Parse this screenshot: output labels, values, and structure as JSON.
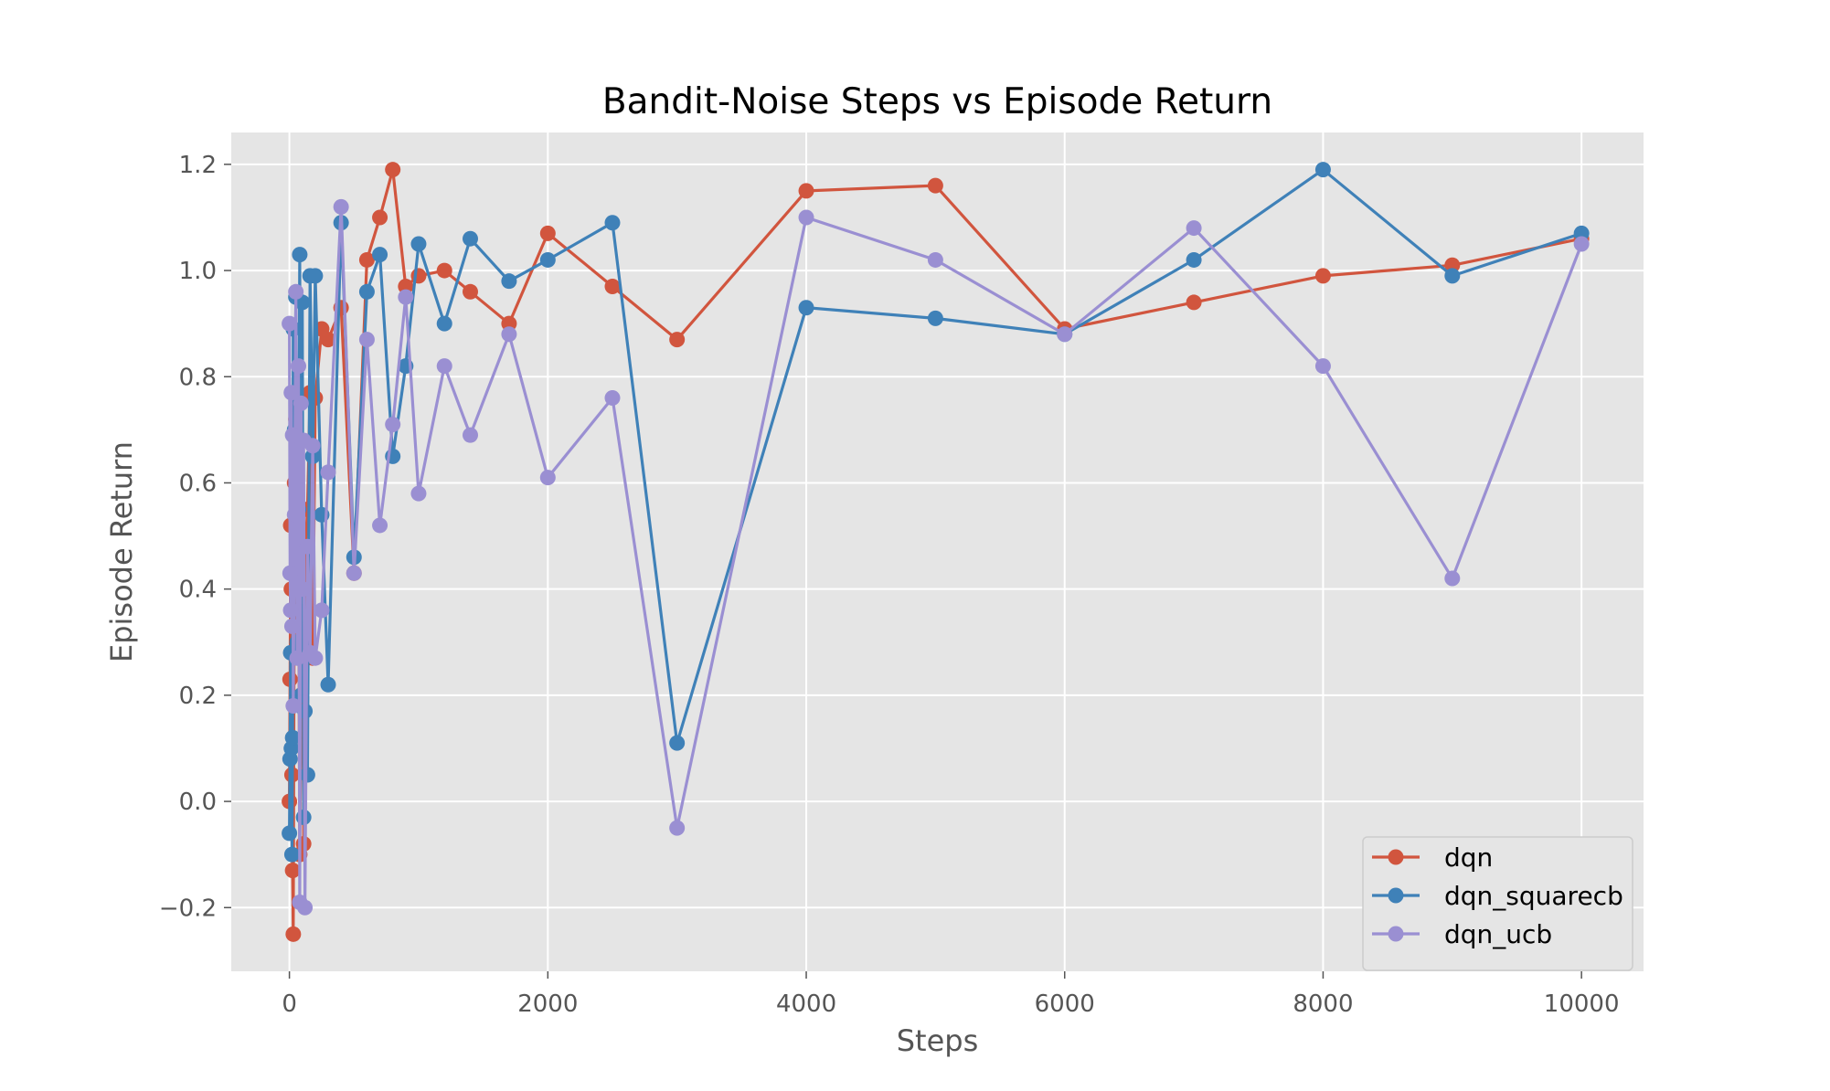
{
  "chart_data": {
    "type": "line",
    "title": "Bandit-Noise Steps vs Episode Return",
    "xlabel": "Steps",
    "ylabel": "Episode Return",
    "xlim": [
      -450,
      10480
    ],
    "ylim": [
      -0.32,
      1.26
    ],
    "xticks": [
      0,
      2000,
      4000,
      6000,
      8000,
      10000
    ],
    "xtick_labels": [
      "0",
      "2000",
      "4000",
      "6000",
      "8000",
      "10000"
    ],
    "yticks": [
      -0.2,
      0.0,
      0.2,
      0.4,
      0.6,
      0.8,
      1.0,
      1.2
    ],
    "ytick_labels": [
      "−0.2",
      "0.0",
      "0.2",
      "0.4",
      "0.6",
      "0.8",
      "1.0",
      "1.2"
    ],
    "grid": true,
    "legend_position": "lower-right",
    "colors": {
      "plot_bg": "#e5e5e5",
      "grid": "#ffffff"
    },
    "series": [
      {
        "name": "dqn",
        "color": "#d1553e",
        "x": [
          0,
          5,
          10,
          15,
          20,
          25,
          30,
          40,
          50,
          60,
          70,
          80,
          90,
          100,
          110,
          120,
          140,
          160,
          180,
          200,
          250,
          300,
          400,
          500,
          600,
          700,
          800,
          900,
          1000,
          1200,
          1400,
          1700,
          2000,
          2500,
          3000,
          4000,
          5000,
          6000,
          7000,
          8000,
          9000,
          10000
        ],
        "y": [
          0.0,
          0.23,
          0.52,
          0.4,
          0.05,
          -0.13,
          -0.25,
          0.6,
          0.72,
          0.3,
          0.55,
          -0.1,
          0.2,
          0.68,
          -0.08,
          0.46,
          0.55,
          0.77,
          0.27,
          0.76,
          0.89,
          0.87,
          0.93,
          0.43,
          1.02,
          1.1,
          1.19,
          0.97,
          0.99,
          1.0,
          0.96,
          0.9,
          1.07,
          0.97,
          0.87,
          1.15,
          1.16,
          0.89,
          0.94,
          0.99,
          1.01,
          1.06
        ]
      },
      {
        "name": "dqn_squarecb",
        "color": "#3f81b8",
        "x": [
          0,
          5,
          10,
          15,
          20,
          25,
          30,
          40,
          50,
          60,
          70,
          80,
          90,
          100,
          110,
          120,
          140,
          160,
          180,
          200,
          250,
          300,
          400,
          500,
          600,
          700,
          800,
          900,
          1000,
          1200,
          1400,
          1700,
          2000,
          2500,
          3000,
          4000,
          5000,
          6000,
          7000,
          8000,
          9000,
          10000
        ],
        "y": [
          -0.06,
          0.08,
          0.28,
          0.1,
          -0.1,
          0.12,
          0.89,
          0.7,
          0.95,
          0.3,
          0.55,
          1.03,
          0.2,
          0.94,
          -0.03,
          0.17,
          0.05,
          0.99,
          0.65,
          0.99,
          0.54,
          0.22,
          1.09,
          0.46,
          0.96,
          1.03,
          0.65,
          0.82,
          1.05,
          0.9,
          1.06,
          0.98,
          1.02,
          1.09,
          0.11,
          0.93,
          0.91,
          0.88,
          1.02,
          1.19,
          0.99,
          1.07
        ]
      },
      {
        "name": "dqn_ucb",
        "color": "#9a8fd2",
        "x": [
          0,
          5,
          10,
          15,
          20,
          25,
          30,
          40,
          50,
          60,
          70,
          80,
          90,
          100,
          110,
          120,
          140,
          160,
          180,
          200,
          250,
          300,
          400,
          500,
          600,
          700,
          800,
          900,
          1000,
          1200,
          1400,
          1700,
          2000,
          2500,
          3000,
          4000,
          5000,
          6000,
          7000,
          8000,
          9000,
          10000
        ],
        "y": [
          0.9,
          0.43,
          0.36,
          0.77,
          0.33,
          0.69,
          0.18,
          0.54,
          0.96,
          0.27,
          0.82,
          -0.19,
          0.75,
          0.4,
          0.68,
          -0.2,
          0.48,
          0.28,
          0.67,
          0.27,
          0.36,
          0.62,
          1.12,
          0.43,
          0.87,
          0.52,
          0.71,
          0.95,
          0.58,
          0.82,
          0.69,
          0.88,
          0.61,
          0.76,
          -0.05,
          1.1,
          1.02,
          0.88,
          1.08,
          0.82,
          0.42,
          1.05
        ]
      }
    ]
  }
}
